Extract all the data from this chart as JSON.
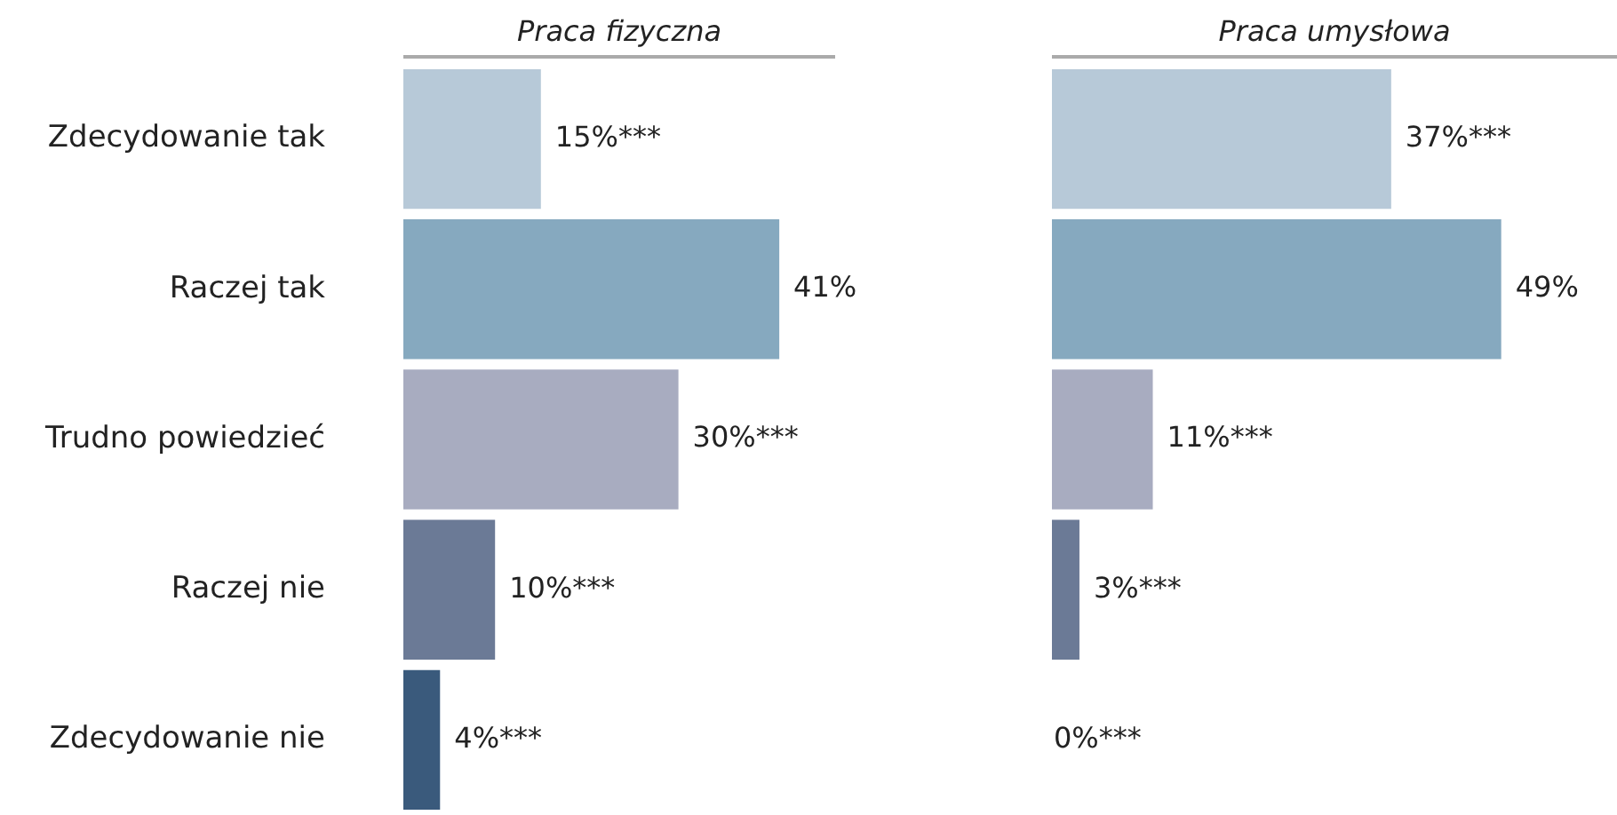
{
  "chart_data": [
    {
      "type": "bar",
      "orientation": "horizontal",
      "title": "Praca fizyczna",
      "categories": [
        "Zdecydowanie tak",
        "Raczej tak",
        "Trudno powiedzieć",
        "Raczej nie",
        "Zdecydowanie nie"
      ],
      "values": [
        15,
        41,
        30,
        10,
        4
      ],
      "colors": [
        "#b7c9d8",
        "#86a9bf",
        "#a8acc0",
        "#6b7a96",
        "#3a5a7c"
      ],
      "value_labels": [
        "15%***",
        "41%",
        "30%***",
        "10%***",
        "4%***"
      ],
      "tick_labels": "y"
    },
    {
      "type": "bar",
      "orientation": "horizontal",
      "title": "Praca umysłowa",
      "categories": [
        null,
        null,
        null,
        null,
        null
      ],
      "values": [
        37,
        49,
        11,
        3,
        0
      ],
      "colors": [
        "#b7c9d8",
        "#86a9bf",
        "#a8acc0",
        "#6b7a96",
        "#3a5a7c"
      ],
      "value_labels": [
        "37%***",
        "49%",
        "11%***",
        "3%***",
        "0%***"
      ],
      "tick_labels": false
    }
  ]
}
